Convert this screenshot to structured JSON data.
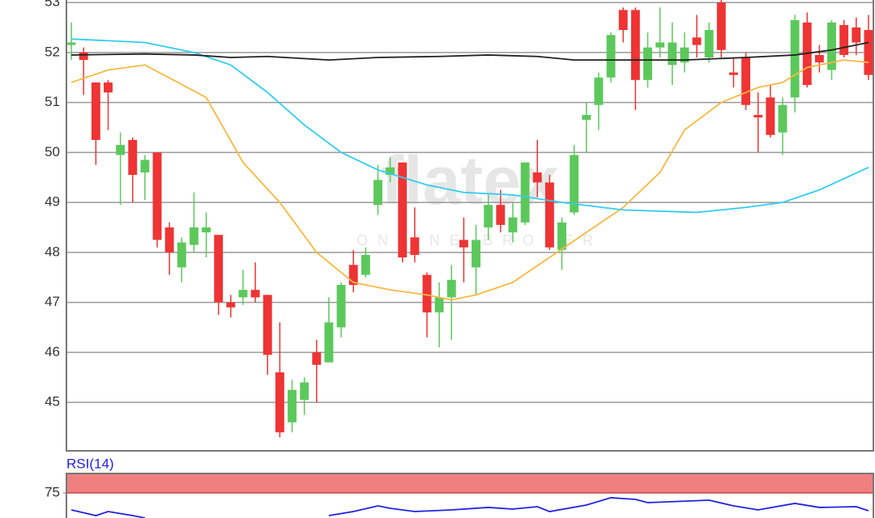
{
  "chart_data": [
    {
      "type": "candlestick",
      "up_color": "#5cc85c",
      "down_color": "#ee3434",
      "open": [
        52.15,
        52.0,
        51.4,
        51.4,
        49.95,
        50.25,
        49.6,
        50.0,
        48.5,
        47.7,
        48.15,
        48.4,
        48.35,
        47.0,
        47.1,
        47.25,
        47.15,
        45.6,
        44.6,
        45.05,
        46.0,
        45.8,
        46.5,
        47.75,
        47.55,
        48.95,
        49.55,
        49.8,
        48.3,
        47.55,
        46.8,
        47.1,
        48.25,
        47.7,
        48.5,
        48.95,
        48.4,
        48.6,
        49.6,
        49.4,
        48.05,
        48.8,
        50.65,
        50.95,
        51.5,
        52.85,
        52.85,
        51.45,
        52.1,
        51.75,
        51.8,
        52.3,
        51.9,
        53.0,
        51.6,
        51.9,
        50.75,
        51.1,
        50.4,
        51.1,
        52.6,
        51.95,
        51.65,
        52.55,
        52.5,
        52.45
      ],
      "high": [
        52.6,
        52.1,
        51.4,
        51.45,
        50.4,
        50.3,
        49.95,
        50.0,
        48.6,
        48.3,
        49.2,
        48.8,
        48.35,
        47.15,
        47.65,
        47.8,
        47.15,
        46.6,
        45.45,
        45.5,
        46.25,
        47.1,
        47.4,
        48.05,
        48.1,
        49.75,
        49.9,
        49.8,
        48.9,
        47.6,
        47.4,
        47.75,
        48.7,
        48.55,
        49.15,
        49.25,
        49.0,
        49.8,
        50.25,
        49.55,
        48.7,
        50.15,
        51.0,
        51.6,
        52.4,
        52.9,
        52.9,
        52.4,
        52.9,
        52.6,
        52.4,
        52.75,
        52.6,
        53.05,
        51.9,
        52.0,
        51.2,
        51.35,
        51.1,
        52.75,
        52.8,
        52.15,
        52.65,
        52.65,
        52.7,
        52.75
      ],
      "low": [
        51.85,
        51.15,
        49.75,
        50.45,
        48.95,
        49.0,
        49.05,
        48.1,
        47.55,
        47.4,
        48.0,
        47.9,
        46.75,
        46.7,
        46.95,
        47.0,
        45.55,
        44.3,
        44.4,
        44.75,
        45.0,
        45.8,
        46.3,
        47.2,
        47.5,
        48.75,
        49.4,
        47.8,
        47.8,
        46.3,
        46.1,
        46.25,
        47.4,
        47.15,
        48.25,
        48.4,
        48.2,
        48.55,
        49.1,
        48.05,
        47.65,
        48.75,
        50.0,
        50.45,
        51.4,
        52.2,
        50.85,
        51.3,
        51.9,
        51.35,
        51.6,
        51.9,
        51.8,
        51.9,
        51.3,
        50.85,
        50.0,
        50.3,
        49.95,
        50.8,
        51.3,
        51.6,
        51.45,
        51.9,
        51.95,
        51.45
      ],
      "close": [
        52.2,
        51.85,
        50.25,
        51.2,
        50.15,
        49.55,
        49.85,
        48.25,
        48.0,
        48.2,
        48.5,
        48.5,
        47.0,
        46.9,
        47.25,
        47.1,
        45.95,
        44.4,
        45.25,
        45.4,
        45.75,
        46.6,
        47.35,
        47.35,
        47.95,
        49.45,
        49.7,
        47.9,
        47.95,
        46.8,
        47.1,
        47.45,
        48.1,
        48.25,
        48.95,
        48.55,
        48.7,
        49.8,
        49.4,
        48.1,
        48.6,
        49.95,
        50.75,
        51.5,
        52.35,
        52.45,
        51.45,
        52.1,
        52.2,
        52.2,
        52.1,
        52.15,
        52.45,
        52.05,
        51.55,
        50.95,
        50.7,
        50.35,
        50.95,
        52.65,
        51.35,
        51.8,
        52.6,
        51.95,
        52.2,
        51.55
      ],
      "lines": [
        {
          "color": "#f5b942",
          "x": [
            0,
            3,
            6,
            11,
            14,
            17,
            20,
            23,
            26,
            29,
            31,
            33,
            36,
            39,
            42,
            45,
            48,
            50,
            53,
            56,
            58,
            60,
            63,
            65
          ],
          "values": [
            51.4,
            51.65,
            51.75,
            51.1,
            49.8,
            49.0,
            48.0,
            47.4,
            47.25,
            47.15,
            47.05,
            47.15,
            47.4,
            47.9,
            48.4,
            48.9,
            49.6,
            50.45,
            51.0,
            51.3,
            51.4,
            51.7,
            51.85,
            51.8
          ]
        },
        {
          "color": "#33ccee",
          "x": [
            0,
            6,
            10,
            13,
            16,
            19,
            22,
            25,
            29,
            32,
            36,
            40,
            45,
            51,
            55,
            58,
            61,
            65
          ],
          "values": [
            52.27,
            52.2,
            52.0,
            51.75,
            51.2,
            50.55,
            50.0,
            49.65,
            49.35,
            49.2,
            49.15,
            49.0,
            48.85,
            48.8,
            48.9,
            49.0,
            49.25,
            49.7
          ]
        },
        {
          "color": "#222222",
          "x": [
            0,
            6,
            10,
            13,
            16,
            21,
            25,
            30,
            34,
            38,
            41,
            50,
            55,
            59,
            62,
            65
          ],
          "values": [
            51.95,
            51.97,
            51.95,
            51.9,
            51.92,
            51.85,
            51.9,
            51.92,
            51.95,
            51.92,
            51.85,
            51.85,
            51.9,
            51.95,
            52.05,
            52.2
          ]
        }
      ],
      "xlim": [
        -0.4,
        65.4
      ],
      "ylim": [
        44.03,
        53.05
      ],
      "yticks": [
        45,
        46,
        47,
        48,
        49,
        50,
        51,
        52,
        53
      ],
      "grid": true,
      "watermark": {
        "brand": "flatex",
        "tagline": "ONLINE BROKER"
      }
    },
    {
      "type": "line",
      "title": "RSI(14)",
      "color": "#2222dd",
      "band_color": "#f08080",
      "band": [
        75,
        100
      ],
      "x": [
        0,
        2,
        3,
        5,
        6,
        13,
        21,
        23,
        25,
        26,
        28,
        31,
        34,
        36,
        38,
        39,
        42,
        44,
        46,
        47,
        52,
        54,
        56,
        59,
        61,
        64,
        65
      ],
      "values": [
        53.1,
        45.8,
        51.0,
        45.8,
        42.7,
        null,
        45.8,
        51.0,
        58.3,
        55.2,
        51.0,
        53.1,
        56.3,
        54.2,
        57.3,
        51.0,
        59.4,
        68.8,
        66.7,
        62.5,
        65.6,
        58.3,
        53.1,
        61.5,
        56.3,
        57.3,
        52.1
      ],
      "xlim": [
        -0.4,
        65.4
      ],
      "ylim": [
        42.7,
        100
      ],
      "yticks": [
        75
      ]
    }
  ]
}
